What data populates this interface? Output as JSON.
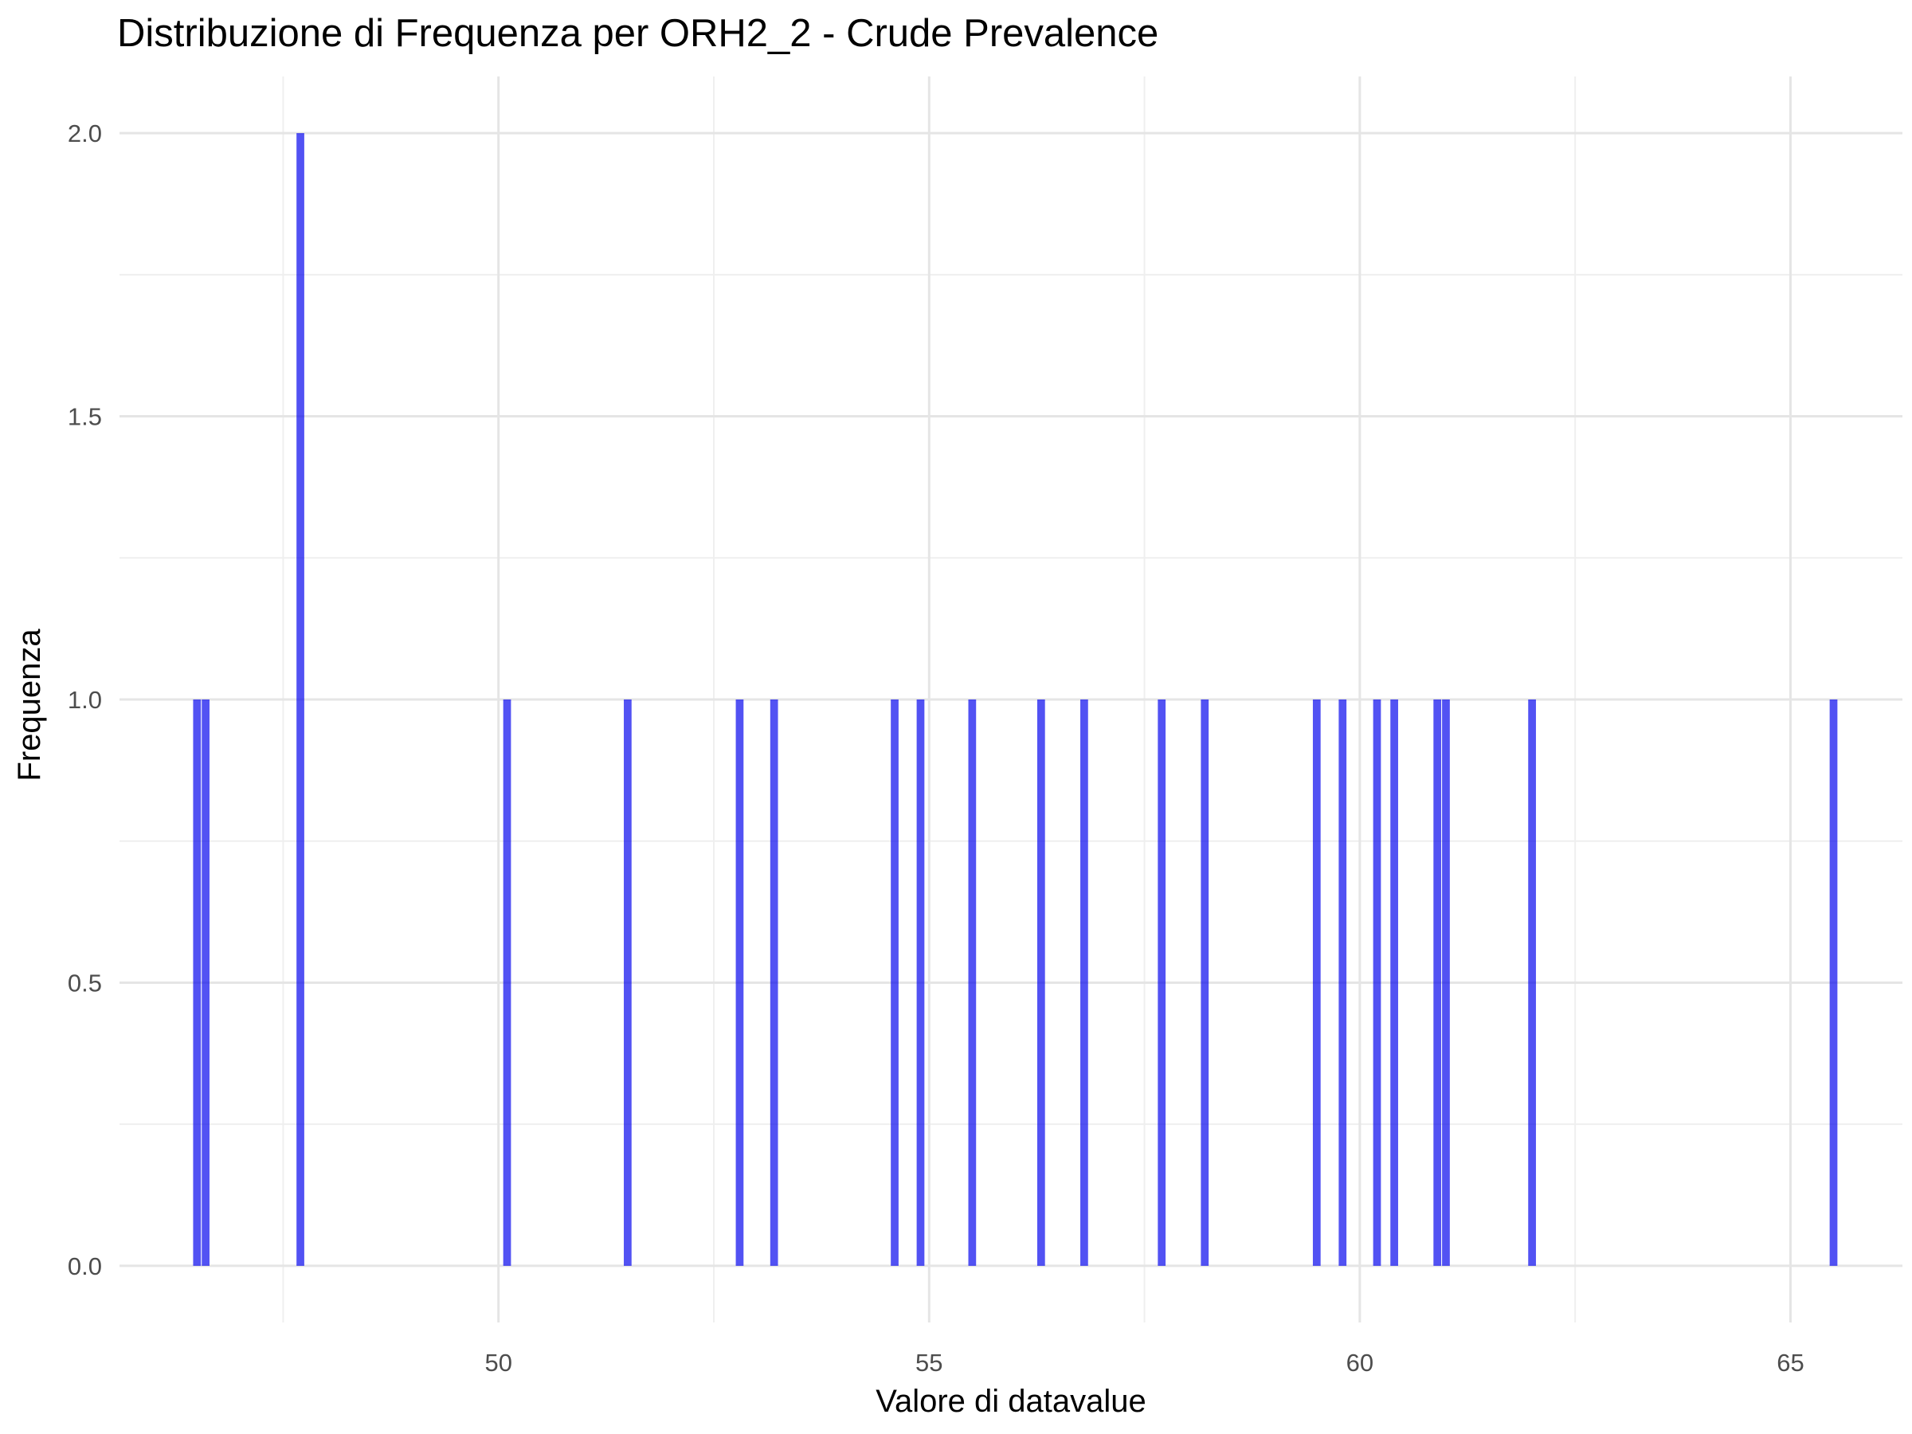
{
  "chart_data": {
    "type": "bar",
    "title": "Distribuzione di Frequenza per ORH2_2 - Crude Prevalence",
    "xlabel": "Valore di datavalue",
    "ylabel": "Frequenza",
    "xlim": [
      45.6,
      66.3
    ],
    "ylim": [
      -0.1,
      2.1
    ],
    "x_ticks": [
      50,
      55,
      60,
      65
    ],
    "x_tick_labels": [
      "50",
      "55",
      "60",
      "65"
    ],
    "y_ticks": [
      0,
      0.5,
      1,
      1.5,
      2
    ],
    "y_tick_labels": [
      "0.0",
      "0.5",
      "1.0",
      "1.5",
      "2.0"
    ],
    "grid": true,
    "legend": "none",
    "bar_color": "#0000ee",
    "bar_width": 0.09,
    "x": [
      46.5,
      46.6,
      47.7,
      50.1,
      51.5,
      52.8,
      53.2,
      54.6,
      54.9,
      55.5,
      56.3,
      56.8,
      57.7,
      58.2,
      59.5,
      59.8,
      60.2,
      60.4,
      60.9,
      61.0,
      62.0,
      65.5
    ],
    "values": [
      1,
      1,
      2,
      1,
      1,
      1,
      1,
      1,
      1,
      1,
      1,
      1,
      1,
      1,
      1,
      1,
      1,
      1,
      1,
      1,
      1,
      1
    ]
  }
}
